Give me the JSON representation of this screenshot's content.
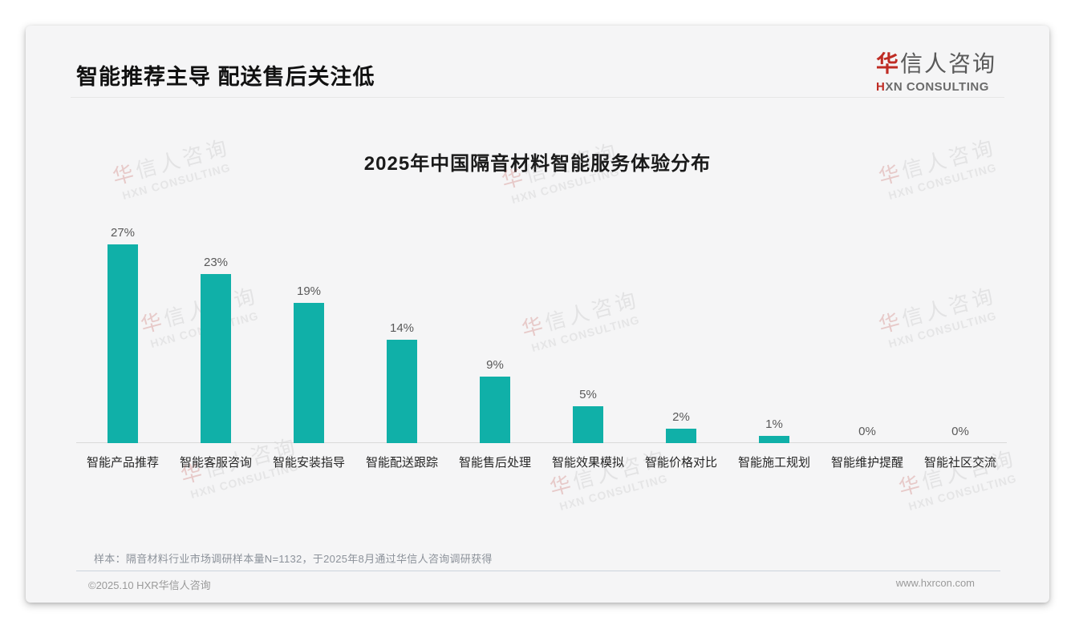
{
  "page": {
    "header": {
      "title": "智能推荐主导 配送售后关注低"
    },
    "logo": {
      "cn_first": "华",
      "cn_rest": "信人咨询",
      "en_first": "H",
      "en_rest": "XN CONSULTING"
    },
    "watermark": {
      "cn_first": "华",
      "cn_rest": "信人咨询",
      "en": "HXN CONSULTING"
    },
    "footnote": "样本：隔音材料行业市场调研样本量N=1132，于2025年8月通过华信人咨询调研获得",
    "footer": {
      "left": "©2025.10 HXR华信人咨询",
      "right": "www.hxrcon.com"
    }
  },
  "chart_data": {
    "type": "bar",
    "title": "2025年中国隔音材料智能服务体验分布",
    "categories": [
      "智能产品推荐",
      "智能客服咨询",
      "智能安装指导",
      "智能配送跟踪",
      "智能售后处理",
      "智能效果模拟",
      "智能价格对比",
      "智能施工规划",
      "智能维护提醒",
      "智能社区交流"
    ],
    "values": [
      27,
      23,
      19,
      14,
      9,
      5,
      2,
      1,
      0,
      0
    ],
    "value_labels": [
      "27%",
      "23%",
      "19%",
      "14%",
      "9%",
      "5%",
      "2%",
      "1%",
      "0%",
      "0%"
    ],
    "unit": "%",
    "xlabel": "",
    "ylabel": "",
    "ylim": [
      0,
      30
    ],
    "grid": false,
    "legend": false,
    "bar_color": "#10b0a8",
    "axis_color": "#d9d9d9"
  }
}
